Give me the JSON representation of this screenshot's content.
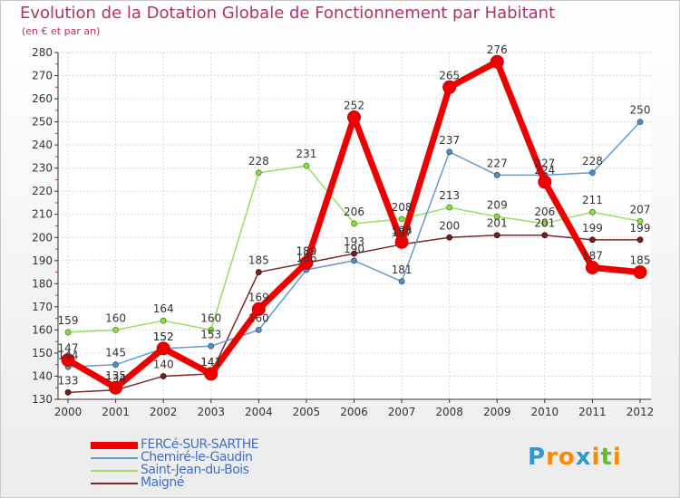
{
  "chart_data": {
    "type": "line",
    "title": "Evolution de la Dotation Globale de Fonctionnement par Habitant",
    "subtitle": "(en € et par an)",
    "xlabel": "",
    "ylabel": "",
    "categories": [
      "2000",
      "2001",
      "2002",
      "2003",
      "2004",
      "2005",
      "2006",
      "2007",
      "2008",
      "2009",
      "2010",
      "2011",
      "2012"
    ],
    "ylim": [
      130,
      280
    ],
    "yticks": [
      130,
      140,
      150,
      160,
      170,
      180,
      190,
      200,
      210,
      220,
      230,
      240,
      250,
      260,
      270,
      280
    ],
    "grid": true,
    "legend_position": "bottom-left",
    "series": [
      {
        "name": "FERCé-SUR-SARTHE",
        "color": "#ee0000",
        "values": [
          147,
          135,
          152,
          141,
          169,
          189,
          252,
          198,
          265,
          276,
          224,
          187,
          185
        ],
        "labels": [
          "147",
          "135",
          "152",
          "141",
          "169",
          "189",
          "252",
          "198",
          "265",
          "276",
          "224",
          "187",
          "185"
        ]
      },
      {
        "name": "Chemiré-le-Gaudin",
        "color": "#6699cc",
        "values": [
          144,
          145,
          152,
          153,
          160,
          186,
          190,
          181,
          237,
          227,
          227,
          228,
          250
        ],
        "labels": [
          "144",
          "145",
          "152",
          "153",
          "160",
          "186",
          "190",
          "181",
          "237",
          "227",
          "227",
          "228",
          "250"
        ]
      },
      {
        "name": "Saint-Jean-du-Bois",
        "color": "#99dd66",
        "values": [
          159,
          160,
          164,
          160,
          228,
          231,
          206,
          208,
          213,
          209,
          206,
          211,
          207
        ],
        "labels": [
          "159",
          "160",
          "164",
          "160",
          "228",
          "231",
          "206",
          "208",
          "213",
          "209",
          "206",
          "211",
          "207"
        ]
      },
      {
        "name": "Maigné",
        "color": "#7a2a2a",
        "values": [
          133,
          134,
          140,
          141,
          185,
          189,
          193,
          197,
          200,
          201,
          201,
          199,
          199
        ],
        "labels": [
          "133",
          "134",
          "140",
          "141",
          "185",
          "189",
          "193",
          "197",
          "200",
          "201",
          "201",
          "199",
          "199"
        ]
      }
    ]
  },
  "logo": {
    "letters": [
      "P",
      "r",
      "o",
      "x",
      "i",
      "t",
      "i"
    ],
    "colors": [
      "#3399cc",
      "#ff8800",
      "#ff8800",
      "#3399cc",
      "#ff8800",
      "#66bb33",
      "#ff8800"
    ]
  }
}
